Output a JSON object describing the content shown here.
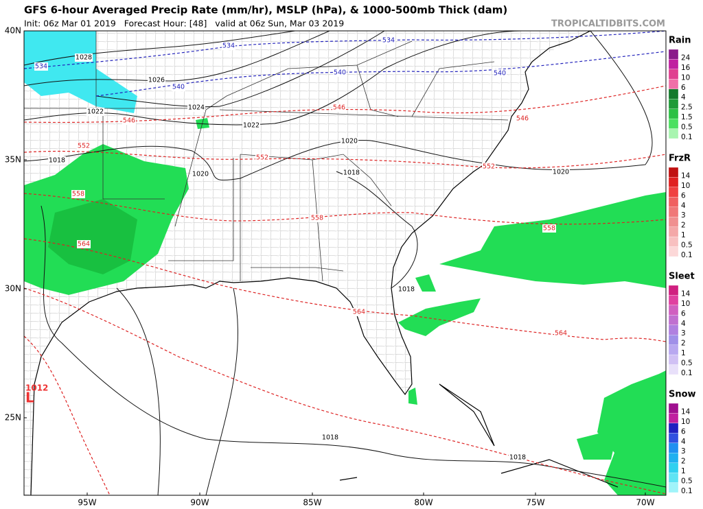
{
  "header": {
    "title": "GFS 6-hour Averaged Precip Rate (mm/hr), MSLP (hPa), & 1000-500mb Thick (dam)",
    "subtitle": "Init: 06z Mar 01 2019   Forecast Hour: [48]   valid at 06z Sun, Mar 03 2019",
    "brand": "TROPICALTIDBITS.COM"
  },
  "map": {
    "lat_labels": [
      "40N",
      "35N",
      "30N",
      "25N"
    ],
    "lon_labels": [
      "95W",
      "90W",
      "85W",
      "80W",
      "75W",
      "70W"
    ],
    "isobar_labels": [
      "1028",
      "1026",
      "1024",
      "1022",
      "1022",
      "1020",
      "1018",
      "1020",
      "1018",
      "1020",
      "1018",
      "1018",
      "1018"
    ],
    "low_center": {
      "label": "L",
      "pressure": "1012"
    },
    "thickness_labels": [
      "534",
      "534",
      "534",
      "540",
      "540",
      "540",
      "546",
      "546",
      "546",
      "552",
      "552",
      "552",
      "558",
      "558",
      "558",
      "564",
      "564",
      "564"
    ]
  },
  "legends": [
    {
      "title": "Rain",
      "labels": [
        "24",
        "16",
        "10",
        "6",
        "4",
        "2.5",
        "1.5",
        "0.5",
        "0.1"
      ]
    },
    {
      "title": "FrzR",
      "labels": [
        "14",
        "10",
        "6",
        "4",
        "3",
        "2",
        "1",
        "0.5",
        "0.1"
      ]
    },
    {
      "title": "Sleet",
      "labels": [
        "14",
        "10",
        "6",
        "4",
        "3",
        "2",
        "1",
        "0.5",
        "0.1"
      ]
    },
    {
      "title": "Snow",
      "labels": [
        "14",
        "10",
        "6",
        "4",
        "3",
        "2",
        "1",
        "0.5",
        "0.1"
      ]
    }
  ]
}
